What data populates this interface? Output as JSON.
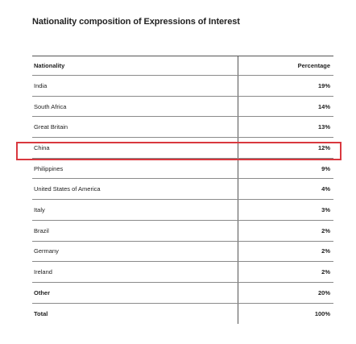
{
  "title": "Nationality composition of Expressions of Interest",
  "header": {
    "nationality": "Nationality",
    "percentage": "Percentage"
  },
  "rows": [
    {
      "nationality": "India",
      "percentage": "19%"
    },
    {
      "nationality": "South Africa",
      "percentage": "14%"
    },
    {
      "nationality": "Great Britain",
      "percentage": "13%"
    },
    {
      "nationality": "China",
      "percentage": "12%"
    },
    {
      "nationality": "Philippines",
      "percentage": "9%"
    },
    {
      "nationality": "United States of America",
      "percentage": "4%"
    },
    {
      "nationality": "Italy",
      "percentage": "3%"
    },
    {
      "nationality": "Brazil",
      "percentage": "2%"
    },
    {
      "nationality": "Germany",
      "percentage": "2%"
    },
    {
      "nationality": "Ireland",
      "percentage": "2%"
    },
    {
      "nationality": "Other",
      "percentage": "20%"
    }
  ],
  "total": {
    "nationality": "Total",
    "percentage": "100%"
  },
  "highlighted_row": "China",
  "highlight_color": "#d9383f"
}
